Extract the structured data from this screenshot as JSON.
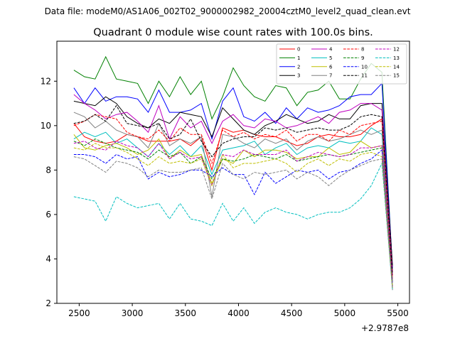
{
  "suptitle": "Data file: modeM0/AS1A06_002T02_9000002982_20004cztM0_level2_quad_clean.evt",
  "chart_data": {
    "type": "line",
    "title": "Quadrant 0 module wise count rates with 100.0s bins.",
    "xlabel": "",
    "ylabel": "",
    "x_offset_label": "+2.9787e8",
    "xlim": [
      2290,
      5610
    ],
    "ylim": [
      2,
      13.8
    ],
    "xticks": [
      2500,
      3000,
      3500,
      4000,
      4500,
      5000,
      5500
    ],
    "yticks": [
      2,
      4,
      6,
      8,
      10,
      12
    ],
    "grid": false,
    "legend_position": "top-right",
    "x": [
      2450,
      2550,
      2650,
      2750,
      2850,
      2950,
      3050,
      3150,
      3250,
      3350,
      3450,
      3550,
      3650,
      3750,
      3850,
      3950,
      4050,
      4150,
      4250,
      4350,
      4450,
      4550,
      4650,
      4750,
      4850,
      4950,
      5050,
      5150,
      5250,
      5350,
      5450
    ],
    "series": [
      {
        "name": "0",
        "color": "#ff0000",
        "dash": "solid",
        "values": [
          10.1,
          9.5,
          9.3,
          9.2,
          9.3,
          9.6,
          9.5,
          9.3,
          9.3,
          9.3,
          9.4,
          9.1,
          9.5,
          8.0,
          9.9,
          9.7,
          9.8,
          9.6,
          9.5,
          9.5,
          9.3,
          9.1,
          9.2,
          9.5,
          9.6,
          9.5,
          9.5,
          9.6,
          10.0,
          10.3,
          3.1
        ]
      },
      {
        "name": "1",
        "color": "#008000",
        "dash": "solid",
        "values": [
          12.5,
          12.2,
          12.1,
          13.1,
          12.1,
          12.0,
          11.9,
          11.0,
          12.0,
          11.3,
          12.2,
          11.4,
          12.0,
          10.3,
          11.3,
          12.6,
          11.8,
          11.3,
          11.1,
          11.8,
          11.7,
          10.9,
          11.5,
          11.6,
          12.0,
          11.2,
          11.2,
          12.1,
          12.8,
          12.4,
          3.5
        ]
      },
      {
        "name": "2",
        "color": "#0000ff",
        "dash": "solid",
        "values": [
          11.7,
          11.0,
          11.7,
          11.1,
          11.3,
          11.3,
          11.2,
          10.6,
          11.6,
          10.6,
          10.6,
          10.7,
          11.0,
          9.4,
          11.1,
          11.7,
          10.4,
          10.2,
          10.6,
          10.1,
          10.8,
          10.3,
          10.8,
          10.6,
          10.7,
          10.9,
          11.3,
          11.4,
          11.4,
          11.9,
          3.6
        ]
      },
      {
        "name": "3",
        "color": "#000000",
        "dash": "solid",
        "values": [
          11.1,
          11.0,
          10.9,
          11.3,
          11.0,
          10.4,
          10.1,
          9.9,
          10.3,
          10.1,
          10.6,
          10.5,
          10.4,
          9.5,
          10.8,
          10.3,
          9.8,
          9.6,
          10.0,
          10.2,
          10.5,
          10.3,
          10.1,
          10.2,
          10.5,
          10.3,
          10.3,
          10.9,
          11.0,
          11.0,
          3.7
        ]
      },
      {
        "name": "4",
        "color": "#bf00bf",
        "dash": "solid",
        "values": [
          11.4,
          11.0,
          10.7,
          10.3,
          10.5,
          10.6,
          10.2,
          9.7,
          10.9,
          9.4,
          10.4,
          9.9,
          10.2,
          9.2,
          10.2,
          10.5,
          10.0,
          9.9,
          10.3,
          10.2,
          9.9,
          10.0,
          10.2,
          10.4,
          10.1,
          10.6,
          10.7,
          11.0,
          11.0,
          10.7,
          3.4
        ]
      },
      {
        "name": "5",
        "color": "#00bfbf",
        "dash": "solid",
        "values": [
          9.4,
          9.7,
          9.5,
          9.7,
          9.2,
          9.4,
          9.0,
          8.6,
          9.2,
          8.7,
          9.1,
          8.6,
          9.1,
          7.8,
          8.9,
          9.0,
          9.1,
          9.3,
          8.7,
          9.0,
          9.2,
          8.7,
          9.0,
          9.1,
          9.0,
          9.3,
          9.2,
          9.3,
          9.9,
          9.6,
          2.6
        ]
      },
      {
        "name": "6",
        "color": "#bfbf00",
        "dash": "solid",
        "values": [
          9.6,
          9.0,
          8.9,
          9.1,
          9.2,
          9.0,
          8.7,
          8.9,
          9.4,
          8.5,
          8.9,
          8.6,
          8.7,
          7.4,
          8.5,
          8.3,
          8.9,
          8.6,
          8.9,
          8.9,
          8.8,
          8.5,
          8.6,
          8.6,
          9.0,
          8.7,
          8.8,
          9.3,
          9.0,
          9.1,
          2.7
        ]
      },
      {
        "name": "7",
        "color": "#808080",
        "dash": "solid",
        "values": [
          10.6,
          10.4,
          9.9,
          10.2,
          9.8,
          9.6,
          9.5,
          9.0,
          10.1,
          9.1,
          9.4,
          9.2,
          9.5,
          6.8,
          9.6,
          9.5,
          9.2,
          9.0,
          9.4,
          9.2,
          9.4,
          8.9,
          9.3,
          9.5,
          9.3,
          9.4,
          9.6,
          9.8,
          9.6,
          9.8,
          3.0
        ]
      },
      {
        "name": "8",
        "color": "#ff0000",
        "dash": "dashed",
        "values": [
          10.0,
          10.2,
          10.5,
          10.4,
          10.3,
          9.7,
          9.5,
          9.4,
          9.8,
          9.3,
          9.9,
          9.6,
          9.6,
          8.3,
          9.8,
          9.5,
          9.7,
          9.4,
          9.6,
          9.5,
          9.8,
          9.3,
          9.6,
          9.6,
          9.3,
          9.8,
          9.6,
          10.0,
          10.1,
          10.2,
          3.2
        ]
      },
      {
        "name": "9",
        "color": "#008000",
        "dash": "dashed",
        "values": [
          9.3,
          9.1,
          9.4,
          9.2,
          9.0,
          8.9,
          8.8,
          8.5,
          8.9,
          8.6,
          8.8,
          8.3,
          8.6,
          7.6,
          8.5,
          8.4,
          8.5,
          8.7,
          8.6,
          8.5,
          8.7,
          8.4,
          8.5,
          8.6,
          8.7,
          8.6,
          8.7,
          8.8,
          8.9,
          9.0,
          2.8
        ]
      },
      {
        "name": "10",
        "color": "#0000ff",
        "dash": "dashed",
        "values": [
          8.7,
          8.7,
          8.6,
          8.3,
          8.7,
          8.5,
          8.6,
          7.6,
          7.9,
          7.7,
          7.8,
          8.0,
          8.0,
          7.7,
          8.1,
          7.8,
          7.8,
          6.9,
          7.9,
          7.4,
          7.7,
          8.0,
          7.9,
          8.0,
          7.6,
          7.9,
          8.0,
          8.3,
          8.5,
          8.9,
          2.9
        ]
      },
      {
        "name": "11",
        "color": "#000000",
        "dash": "dashed",
        "values": [
          10.1,
          10.2,
          10.5,
          10.2,
          10.9,
          10.1,
          10.0,
          9.9,
          10.1,
          9.4,
          9.6,
          10.3,
          9.3,
          8.6,
          9.2,
          9.4,
          9.5,
          9.5,
          9.9,
          9.8,
          9.9,
          9.7,
          9.8,
          9.9,
          9.8,
          9.8,
          10.0,
          10.4,
          10.5,
          10.4,
          3.3
        ]
      },
      {
        "name": "12",
        "color": "#bf00bf",
        "dash": "dashed",
        "values": [
          9.2,
          9.3,
          9.0,
          8.9,
          9.3,
          9.1,
          9.0,
          8.6,
          9.2,
          8.5,
          8.8,
          8.5,
          8.6,
          7.3,
          8.7,
          8.6,
          8.9,
          8.7,
          8.7,
          8.7,
          8.9,
          8.4,
          8.6,
          8.8,
          8.7,
          8.6,
          8.7,
          9.0,
          9.0,
          9.1,
          2.7
        ]
      },
      {
        "name": "13",
        "color": "#00bfbf",
        "dash": "dashed",
        "values": [
          6.8,
          6.7,
          6.6,
          5.7,
          6.8,
          6.5,
          6.3,
          6.4,
          6.5,
          5.8,
          6.5,
          5.8,
          5.7,
          5.5,
          6.5,
          5.7,
          6.3,
          5.6,
          6.1,
          6.3,
          6.1,
          6.0,
          5.8,
          6.0,
          6.1,
          6.1,
          6.3,
          6.7,
          7.3,
          8.3,
          2.6
        ]
      },
      {
        "name": "14",
        "color": "#bfbf00",
        "dash": "dashed",
        "values": [
          9.0,
          8.9,
          9.2,
          9.0,
          9.0,
          8.8,
          8.5,
          8.2,
          8.6,
          8.3,
          8.4,
          8.3,
          8.5,
          7.3,
          8.7,
          8.1,
          8.3,
          8.3,
          8.4,
          8.5,
          8.3,
          7.9,
          8.3,
          8.5,
          8.2,
          8.5,
          8.4,
          8.7,
          8.8,
          8.6,
          2.7
        ]
      },
      {
        "name": "15",
        "color": "#808080",
        "dash": "dashed",
        "values": [
          8.6,
          8.5,
          8.2,
          7.9,
          8.4,
          8.3,
          8.1,
          7.7,
          8.0,
          7.9,
          7.9,
          8.0,
          8.1,
          6.7,
          8.3,
          7.8,
          7.6,
          7.9,
          7.8,
          7.9,
          8.0,
          7.6,
          7.9,
          7.7,
          7.3,
          7.7,
          8.0,
          8.2,
          8.4,
          8.5,
          2.6
        ]
      }
    ]
  }
}
